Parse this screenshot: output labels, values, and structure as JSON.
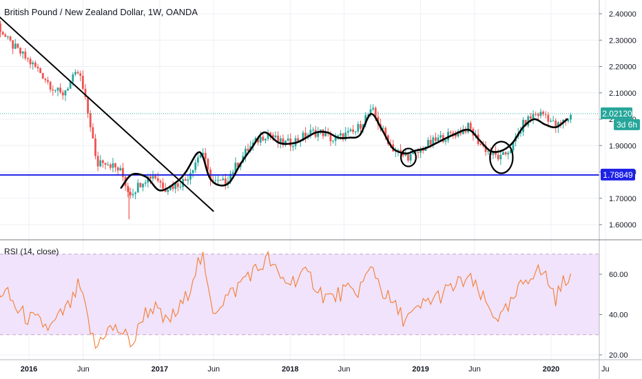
{
  "header": {
    "title": "British Pound / New Zealand Dollar, 1W, OANDA"
  },
  "countdown": "3d 6h",
  "colors": {
    "up": "#26a69a",
    "down": "#ef5350",
    "support": "#1e22e6",
    "last_price": "#26a69a",
    "rsi_line": "#f57c30",
    "rsi_band": "#f0e3fb",
    "grid": "#eceff4",
    "drawing": "#000000"
  },
  "chart_data": [
    {
      "type": "candlestick",
      "title": "British Pound / New Zealand Dollar, 1W, OANDA",
      "x_ticks": [
        {
          "label": "2016",
          "date": "2016-01-01"
        },
        {
          "label": "Jun",
          "date": "2016-06-01"
        },
        {
          "label": "2017",
          "date": "2017-01-01"
        },
        {
          "label": "Jun",
          "date": "2017-06-01"
        },
        {
          "label": "2018",
          "date": "2018-01-01"
        },
        {
          "label": "Jun",
          "date": "2018-06-01"
        },
        {
          "label": "2019",
          "date": "2019-01-01"
        },
        {
          "label": "Jun",
          "date": "2019-06-01"
        },
        {
          "label": "2020",
          "date": "2020-01-01"
        },
        {
          "label": "Ju",
          "date": "2020-06-01"
        }
      ],
      "y_ticks": [
        "1.60000",
        "1.70000",
        "1.80000",
        "1.90000",
        "2.00000",
        "2.10000",
        "2.20000",
        "2.30000",
        "2.40000"
      ],
      "ylim": [
        1.55,
        2.42
      ],
      "price_path": [
        [
          "2015-09-01",
          2.34
        ],
        [
          "2015-10-01",
          2.37
        ],
        [
          "2015-11-01",
          2.3
        ],
        [
          "2015-12-01",
          2.26
        ],
        [
          "2016-01-01",
          2.22
        ],
        [
          "2016-02-01",
          2.18
        ],
        [
          "2016-03-01",
          2.13
        ],
        [
          "2016-04-01",
          2.09
        ],
        [
          "2016-05-01",
          2.15
        ],
        [
          "2016-05-20",
          2.18
        ],
        [
          "2016-06-10",
          2.05
        ],
        [
          "2016-06-24",
          1.96
        ],
        [
          "2016-07-08",
          1.82
        ],
        [
          "2016-07-22",
          1.85
        ],
        [
          "2016-08-15",
          1.83
        ],
        [
          "2016-09-15",
          1.8
        ],
        [
          "2016-10-07",
          1.72
        ],
        [
          "2016-10-21",
          1.73
        ],
        [
          "2016-11-15",
          1.77
        ],
        [
          "2016-12-15",
          1.79
        ],
        [
          "2017-01-15",
          1.74
        ],
        [
          "2017-02-15",
          1.75
        ],
        [
          "2017-03-15",
          1.77
        ],
        [
          "2017-04-15",
          1.85
        ],
        [
          "2017-05-01",
          1.88
        ],
        [
          "2017-05-15",
          1.8
        ],
        [
          "2017-06-01",
          1.76
        ],
        [
          "2017-07-01",
          1.76
        ],
        [
          "2017-08-01",
          1.82
        ],
        [
          "2017-09-01",
          1.88
        ],
        [
          "2017-10-01",
          1.92
        ],
        [
          "2017-11-01",
          1.95
        ],
        [
          "2017-12-01",
          1.91
        ],
        [
          "2018-01-01",
          1.91
        ],
        [
          "2018-02-01",
          1.93
        ],
        [
          "2018-03-01",
          1.95
        ],
        [
          "2018-04-01",
          1.95
        ],
        [
          "2018-05-01",
          1.92
        ],
        [
          "2018-06-01",
          1.94
        ],
        [
          "2018-07-01",
          1.95
        ],
        [
          "2018-08-01",
          2.01
        ],
        [
          "2018-08-20",
          2.03
        ],
        [
          "2018-09-15",
          1.96
        ],
        [
          "2018-10-15",
          1.89
        ],
        [
          "2018-11-15",
          1.86
        ],
        [
          "2018-12-15",
          1.86
        ],
        [
          "2019-01-15",
          1.9
        ],
        [
          "2019-03-01",
          1.93
        ],
        [
          "2019-04-15",
          1.95
        ],
        [
          "2019-05-15",
          1.97
        ],
        [
          "2019-06-15",
          1.91
        ],
        [
          "2019-07-15",
          1.87
        ],
        [
          "2019-08-15",
          1.85
        ],
        [
          "2019-09-15",
          1.9
        ],
        [
          "2019-10-15",
          1.98
        ],
        [
          "2019-11-15",
          2.02
        ],
        [
          "2019-12-15",
          2.02
        ],
        [
          "2020-01-15",
          1.97
        ],
        [
          "2020-02-15",
          2.0
        ],
        [
          "2020-03-01",
          2.02
        ]
      ],
      "support_level": {
        "label": "1.78849",
        "value": 1.78849
      },
      "last_price": {
        "label": "2.02120",
        "value": 2.0212
      },
      "trendline": [
        [
          "2015-10-01",
          2.4
        ],
        [
          "2017-06-01",
          1.65
        ]
      ],
      "curve": [
        [
          "2016-09-15",
          1.74
        ],
        [
          "2016-10-15",
          1.79
        ],
        [
          "2016-11-25",
          1.78
        ],
        [
          "2017-01-01",
          1.73
        ],
        [
          "2017-02-15",
          1.76
        ],
        [
          "2017-03-15",
          1.8
        ],
        [
          "2017-04-15",
          1.87
        ],
        [
          "2017-05-01",
          1.86
        ],
        [
          "2017-05-20",
          1.78
        ],
        [
          "2017-06-15",
          1.75
        ],
        [
          "2017-07-15",
          1.76
        ],
        [
          "2017-08-15",
          1.83
        ],
        [
          "2017-09-15",
          1.89
        ],
        [
          "2017-10-20",
          1.95
        ],
        [
          "2017-12-01",
          1.91
        ],
        [
          "2018-01-15",
          1.91
        ],
        [
          "2018-02-15",
          1.93
        ],
        [
          "2018-03-15",
          1.95
        ],
        [
          "2018-04-15",
          1.95
        ],
        [
          "2018-05-15",
          1.93
        ],
        [
          "2018-06-15",
          1.93
        ],
        [
          "2018-07-15",
          1.94
        ],
        [
          "2018-08-15",
          2.02
        ],
        [
          "2018-09-15",
          1.96
        ],
        [
          "2018-10-15",
          1.89
        ],
        [
          "2018-11-20",
          1.87
        ],
        [
          "2018-12-15",
          1.88
        ],
        [
          "2019-01-15",
          1.89
        ],
        [
          "2019-02-15",
          1.91
        ],
        [
          "2019-04-01",
          1.94
        ],
        [
          "2019-05-15",
          1.96
        ],
        [
          "2019-06-15",
          1.92
        ],
        [
          "2019-07-15",
          1.88
        ],
        [
          "2019-08-15",
          1.88
        ],
        [
          "2019-09-15",
          1.91
        ],
        [
          "2019-10-15",
          1.97
        ],
        [
          "2019-11-15",
          2.0
        ],
        [
          "2019-12-15",
          1.98
        ],
        [
          "2020-01-15",
          1.97
        ],
        [
          "2020-02-15",
          2.0
        ]
      ],
      "circles": [
        {
          "center": [
            "2018-11-28",
            1.855
          ],
          "rx_days": 21,
          "ry": 0.034
        },
        {
          "center": [
            "2019-08-15",
            1.855
          ],
          "rx_days": 32,
          "ry": 0.06
        }
      ]
    },
    {
      "type": "line",
      "title": "RSI (14, close)",
      "y_ticks": [
        "20.00",
        "40.00",
        "60.00"
      ],
      "ylim": [
        18,
        73
      ],
      "overbought": 70,
      "oversold": 30,
      "series": [
        {
          "values": [
            [
              "2015-09-01",
              47
            ],
            [
              "2015-10-01",
              52
            ],
            [
              "2015-11-01",
              50
            ],
            [
              "2015-12-01",
              42
            ],
            [
              "2016-01-01",
              38
            ],
            [
              "2016-02-01",
              36
            ],
            [
              "2016-03-01",
              33
            ],
            [
              "2016-04-01",
              40
            ],
            [
              "2016-05-01",
              46
            ],
            [
              "2016-05-20",
              55
            ],
            [
              "2016-06-10",
              40
            ],
            [
              "2016-06-24",
              30
            ],
            [
              "2016-07-08",
              22
            ],
            [
              "2016-07-22",
              30
            ],
            [
              "2016-08-15",
              33
            ],
            [
              "2016-09-15",
              32
            ],
            [
              "2016-10-07",
              27
            ],
            [
              "2016-10-21",
              26
            ],
            [
              "2016-11-15",
              40
            ],
            [
              "2016-12-15",
              44
            ],
            [
              "2017-01-15",
              36
            ],
            [
              "2017-02-15",
              40
            ],
            [
              "2017-03-15",
              48
            ],
            [
              "2017-04-15",
              65
            ],
            [
              "2017-05-01",
              68
            ],
            [
              "2017-05-15",
              52
            ],
            [
              "2017-06-01",
              42
            ],
            [
              "2017-07-01",
              48
            ],
            [
              "2017-08-01",
              52
            ],
            [
              "2017-09-01",
              60
            ],
            [
              "2017-10-01",
              62
            ],
            [
              "2017-11-01",
              68
            ],
            [
              "2017-12-01",
              58
            ],
            [
              "2018-01-01",
              56
            ],
            [
              "2018-02-01",
              60
            ],
            [
              "2018-03-01",
              58
            ],
            [
              "2018-04-01",
              50
            ],
            [
              "2018-05-01",
              48
            ],
            [
              "2018-06-01",
              52
            ],
            [
              "2018-07-01",
              50
            ],
            [
              "2018-08-01",
              58
            ],
            [
              "2018-08-20",
              64
            ],
            [
              "2018-09-15",
              52
            ],
            [
              "2018-10-15",
              45
            ],
            [
              "2018-11-15",
              38
            ],
            [
              "2018-12-15",
              40
            ],
            [
              "2019-01-15",
              46
            ],
            [
              "2019-03-01",
              50
            ],
            [
              "2019-04-15",
              55
            ],
            [
              "2019-05-15",
              58
            ],
            [
              "2019-06-15",
              50
            ],
            [
              "2019-07-15",
              42
            ],
            [
              "2019-08-15",
              38
            ],
            [
              "2019-09-15",
              46
            ],
            [
              "2019-10-15",
              56
            ],
            [
              "2019-11-15",
              62
            ],
            [
              "2019-12-15",
              60
            ],
            [
              "2020-01-15",
              48
            ],
            [
              "2020-02-15",
              60
            ],
            [
              "2020-03-01",
              58
            ]
          ]
        }
      ]
    }
  ]
}
